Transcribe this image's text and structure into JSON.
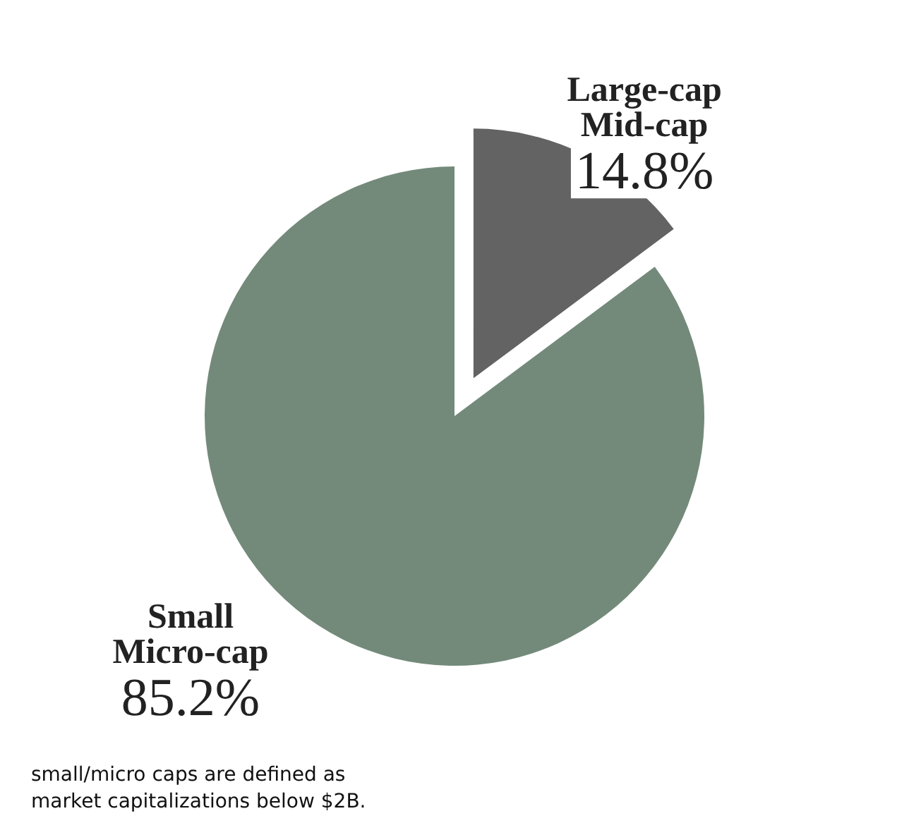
{
  "chart_data": {
    "type": "pie",
    "categories": [
      "Large-cap\nMid-cap",
      "Small\nMicro-cap"
    ],
    "values": [
      14.8,
      85.2
    ],
    "colors": [
      "#636363",
      "#738a7a"
    ],
    "value_labels": [
      "14.8%",
      "85.2%"
    ],
    "annotations": [
      "small/micro caps are defined as\nmarket capitalizations below $2B."
    ]
  }
}
